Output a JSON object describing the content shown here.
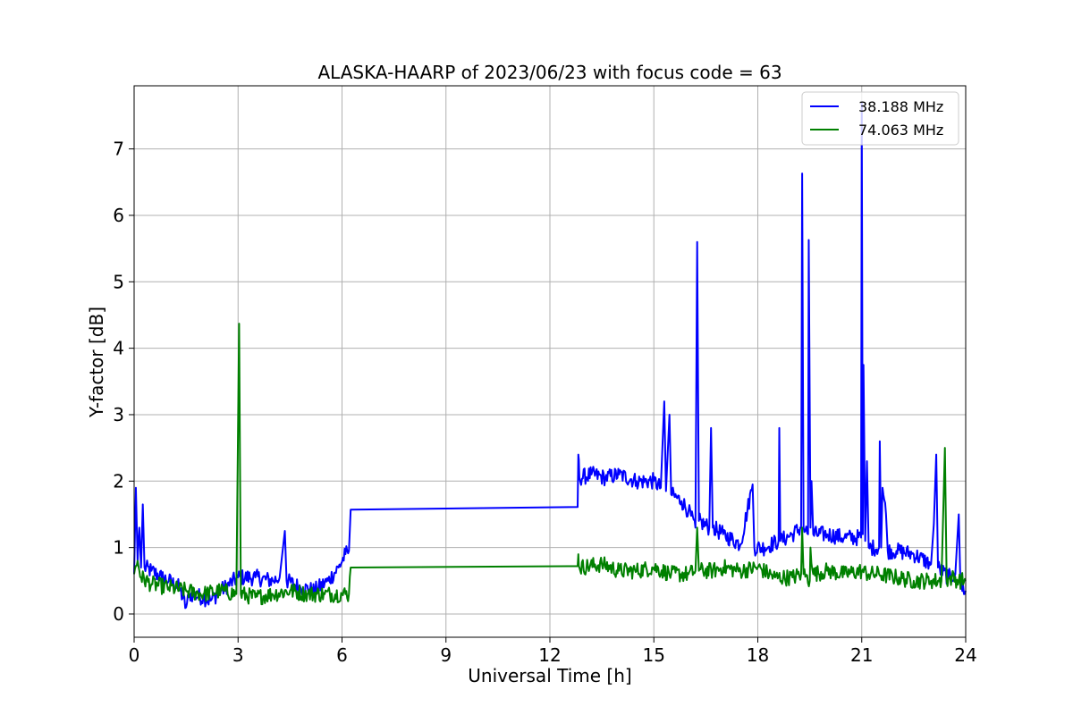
{
  "chart_data": {
    "type": "line",
    "title": "ALASKA-HAARP of 2023/06/23 with focus code = 63",
    "xlabel": "Universal Time [h]",
    "ylabel": "Y-factor [dB]",
    "xlim": [
      0,
      24
    ],
    "ylim": [
      -0.35,
      7.95
    ],
    "xticks": [
      0,
      3,
      6,
      9,
      12,
      15,
      18,
      21,
      24
    ],
    "yticks": [
      0,
      1,
      2,
      3,
      4,
      5,
      6,
      7
    ],
    "grid": true,
    "legend_position": "top-right",
    "series": [
      {
        "name": "38.188 MHz",
        "color": "#0000ff",
        "points": [
          [
            0,
            0.6
          ],
          [
            0.05,
            1.9
          ],
          [
            0.1,
            0.8
          ],
          [
            0.15,
            1.3
          ],
          [
            0.2,
            0.7
          ],
          [
            0.25,
            1.65
          ],
          [
            0.3,
            0.7
          ],
          [
            0.5,
            0.65
          ],
          [
            0.8,
            0.55
          ],
          [
            1.0,
            0.5
          ],
          [
            1.3,
            0.4
          ],
          [
            1.5,
            0.1
          ],
          [
            1.6,
            0.3
          ],
          [
            2.0,
            0.25
          ],
          [
            2.2,
            0.2
          ],
          [
            2.5,
            0.35
          ],
          [
            3.0,
            0.55
          ],
          [
            3.5,
            0.55
          ],
          [
            4.0,
            0.5
          ],
          [
            4.2,
            0.55
          ],
          [
            4.35,
            1.25
          ],
          [
            4.4,
            0.5
          ],
          [
            4.8,
            0.4
          ],
          [
            5.2,
            0.35
          ],
          [
            5.6,
            0.5
          ],
          [
            5.9,
            0.7
          ],
          [
            6.1,
            0.9
          ],
          [
            6.2,
            0.95
          ],
          [
            6.25,
            1.57
          ],
          [
            12.8,
            1.61
          ],
          [
            12.82,
            2.4
          ],
          [
            12.85,
            2.05
          ],
          [
            13.2,
            2.1
          ],
          [
            13.6,
            2.05
          ],
          [
            14.0,
            2.1
          ],
          [
            14.5,
            2.0
          ],
          [
            15.0,
            2.0
          ],
          [
            15.2,
            1.9
          ],
          [
            15.3,
            3.2
          ],
          [
            15.35,
            1.85
          ],
          [
            15.45,
            3.0
          ],
          [
            15.5,
            1.8
          ],
          [
            15.8,
            1.7
          ],
          [
            16.0,
            1.55
          ],
          [
            16.2,
            1.3
          ],
          [
            16.25,
            5.6
          ],
          [
            16.3,
            1.4
          ],
          [
            16.6,
            1.3
          ],
          [
            16.65,
            2.8
          ],
          [
            16.7,
            1.3
          ],
          [
            17.0,
            1.2
          ],
          [
            17.5,
            1.05
          ],
          [
            17.85,
            1.95
          ],
          [
            17.9,
            1.0
          ],
          [
            18.2,
            1.0
          ],
          [
            18.6,
            1.1
          ],
          [
            18.62,
            2.8
          ],
          [
            18.65,
            1.1
          ],
          [
            19.0,
            1.2
          ],
          [
            19.25,
            1.3
          ],
          [
            19.28,
            6.63
          ],
          [
            19.32,
            1.3
          ],
          [
            19.45,
            1.2
          ],
          [
            19.47,
            5.63
          ],
          [
            19.52,
            1.3
          ],
          [
            19.55,
            2.0
          ],
          [
            19.6,
            1.2
          ],
          [
            20.0,
            1.2
          ],
          [
            20.5,
            1.15
          ],
          [
            20.98,
            1.15
          ],
          [
            21.0,
            7.7
          ],
          [
            21.03,
            1.2
          ],
          [
            21.05,
            3.75
          ],
          [
            21.1,
            1.1
          ],
          [
            21.15,
            2.3
          ],
          [
            21.2,
            1.0
          ],
          [
            21.5,
            1.0
          ],
          [
            21.52,
            2.6
          ],
          [
            21.56,
            1.0
          ],
          [
            21.6,
            1.9
          ],
          [
            21.7,
            1.5
          ],
          [
            21.75,
            0.95
          ],
          [
            22.0,
            0.95
          ],
          [
            22.5,
            0.9
          ],
          [
            23.0,
            0.75
          ],
          [
            23.08,
            1.35
          ],
          [
            23.15,
            2.4
          ],
          [
            23.2,
            0.7
          ],
          [
            23.5,
            0.55
          ],
          [
            23.7,
            0.6
          ],
          [
            23.8,
            1.5
          ],
          [
            23.85,
            0.4
          ],
          [
            24.0,
            0.35
          ]
        ]
      },
      {
        "name": "74.063 MHz",
        "color": "#008000",
        "points": [
          [
            0,
            0.6
          ],
          [
            0.1,
            0.8
          ],
          [
            0.2,
            0.55
          ],
          [
            0.5,
            0.45
          ],
          [
            1.0,
            0.4
          ],
          [
            1.5,
            0.35
          ],
          [
            2.0,
            0.3
          ],
          [
            2.5,
            0.35
          ],
          [
            2.95,
            0.3
          ],
          [
            3.03,
            4.37
          ],
          [
            3.08,
            0.3
          ],
          [
            3.5,
            0.25
          ],
          [
            4.0,
            0.3
          ],
          [
            4.5,
            0.35
          ],
          [
            5.0,
            0.3
          ],
          [
            5.5,
            0.3
          ],
          [
            6.0,
            0.3
          ],
          [
            6.2,
            0.3
          ],
          [
            6.25,
            0.7
          ],
          [
            12.8,
            0.72
          ],
          [
            12.82,
            0.9
          ],
          [
            12.85,
            0.7
          ],
          [
            13.5,
            0.75
          ],
          [
            14.0,
            0.65
          ],
          [
            14.5,
            0.65
          ],
          [
            15.0,
            0.7
          ],
          [
            15.5,
            0.6
          ],
          [
            16.0,
            0.6
          ],
          [
            16.2,
            0.65
          ],
          [
            16.25,
            1.3
          ],
          [
            16.3,
            0.65
          ],
          [
            16.7,
            0.65
          ],
          [
            17.0,
            0.7
          ],
          [
            17.5,
            0.65
          ],
          [
            18.0,
            0.7
          ],
          [
            18.5,
            0.55
          ],
          [
            19.0,
            0.55
          ],
          [
            19.25,
            0.6
          ],
          [
            19.28,
            1.3
          ],
          [
            19.32,
            0.6
          ],
          [
            19.5,
            0.5
          ],
          [
            19.52,
            1.0
          ],
          [
            19.6,
            0.6
          ],
          [
            20.0,
            0.65
          ],
          [
            20.5,
            0.6
          ],
          [
            21.0,
            0.65
          ],
          [
            21.2,
            0.6
          ],
          [
            21.5,
            0.6
          ],
          [
            22.0,
            0.55
          ],
          [
            22.5,
            0.5
          ],
          [
            23.0,
            0.5
          ],
          [
            23.3,
            0.5
          ],
          [
            23.4,
            2.5
          ],
          [
            23.45,
            0.5
          ],
          [
            23.6,
            0.55
          ],
          [
            23.8,
            0.5
          ],
          [
            24.0,
            0.5
          ]
        ]
      }
    ]
  }
}
